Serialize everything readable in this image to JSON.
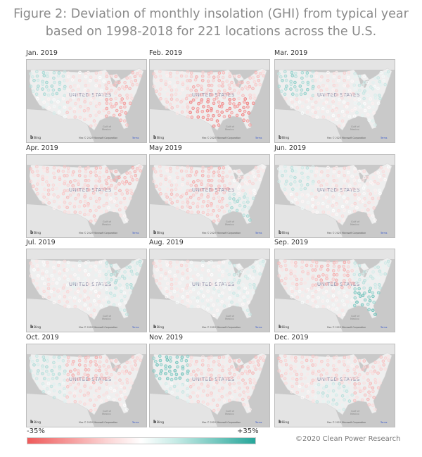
{
  "title": "Figure 2: Deviation of monthly insolation (GHI) from typical year based on 1998-2018 for 221 locations across the U.S.",
  "map_labels": {
    "country": "UNITED STATES",
    "gulf1": "Gulf of",
    "gulf2": "Mexico",
    "bing": "Bing",
    "copyright": "Mex © 2020 Microsoft Corporation",
    "terms": "Terms"
  },
  "legend": {
    "min": "-35%",
    "max": "+35%",
    "min_color": "#ef5a5a",
    "max_color": "#26a69a"
  },
  "credit": "©2020 Clean Power Research",
  "region_order": [
    "northwest",
    "southwest",
    "north-central",
    "south-central",
    "northeast",
    "southeast"
  ],
  "panels": [
    {
      "label": "Jan. 2019",
      "deviation_pct": [
        12,
        2,
        -5,
        -8,
        -12,
        -18
      ]
    },
    {
      "label": "Feb. 2019",
      "deviation_pct": [
        -8,
        -10,
        -15,
        -25,
        -12,
        -25
      ]
    },
    {
      "label": "Mar. 2019",
      "deviation_pct": [
        15,
        -4,
        -6,
        -4,
        6,
        2
      ]
    },
    {
      "label": "Apr. 2019",
      "deviation_pct": [
        -10,
        -8,
        -12,
        -10,
        -15,
        -6
      ]
    },
    {
      "label": "May 2019",
      "deviation_pct": [
        -8,
        -12,
        -15,
        -12,
        -5,
        12
      ]
    },
    {
      "label": "Jun. 2019",
      "deviation_pct": [
        8,
        -2,
        -6,
        -4,
        -4,
        -6
      ]
    },
    {
      "label": "Jul. 2019",
      "deviation_pct": [
        -4,
        -6,
        0,
        -4,
        10,
        6
      ]
    },
    {
      "label": "Aug. 2019",
      "deviation_pct": [
        -6,
        -4,
        0,
        2,
        6,
        4
      ]
    },
    {
      "label": "Sep. 2019",
      "deviation_pct": [
        -10,
        -4,
        -15,
        -2,
        8,
        22
      ]
    },
    {
      "label": "Oct. 2019",
      "deviation_pct": [
        10,
        6,
        -15,
        -8,
        -10,
        -4
      ]
    },
    {
      "label": "Nov. 2019",
      "deviation_pct": [
        22,
        6,
        -10,
        -8,
        -12,
        -8
      ]
    },
    {
      "label": "Dec. 2019",
      "deviation_pct": [
        -10,
        -6,
        -8,
        8,
        -10,
        -12
      ]
    }
  ]
}
